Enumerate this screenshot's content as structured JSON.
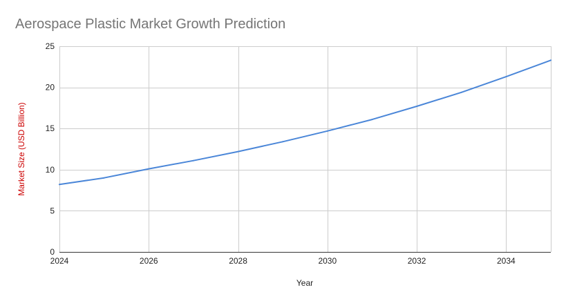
{
  "chart_data": {
    "type": "line",
    "title": "Aerospace Plastic Market Growth Prediction",
    "xlabel": "Year",
    "ylabel": "Market Size (USD Billion)",
    "x": [
      2024,
      2025,
      2026,
      2027,
      2028,
      2029,
      2030,
      2031,
      2032,
      2033,
      2034,
      2035
    ],
    "series": [
      {
        "values": [
          8.2,
          9.0,
          10.1,
          11.1,
          12.2,
          13.4,
          14.7,
          16.1,
          17.7,
          19.4,
          21.3,
          23.3
        ]
      }
    ],
    "xlim": [
      2024,
      2035
    ],
    "ylim": [
      0,
      25
    ],
    "xticks": [
      "2024",
      "2026",
      "2028",
      "2030",
      "2032",
      "2034"
    ],
    "yticks": [
      "0",
      "5",
      "10",
      "15",
      "20",
      "25"
    ],
    "grid": true,
    "legend": "none",
    "colors": {
      "line": "#4a86d8",
      "ylabel": "#cc0000",
      "title": "#757575"
    }
  }
}
